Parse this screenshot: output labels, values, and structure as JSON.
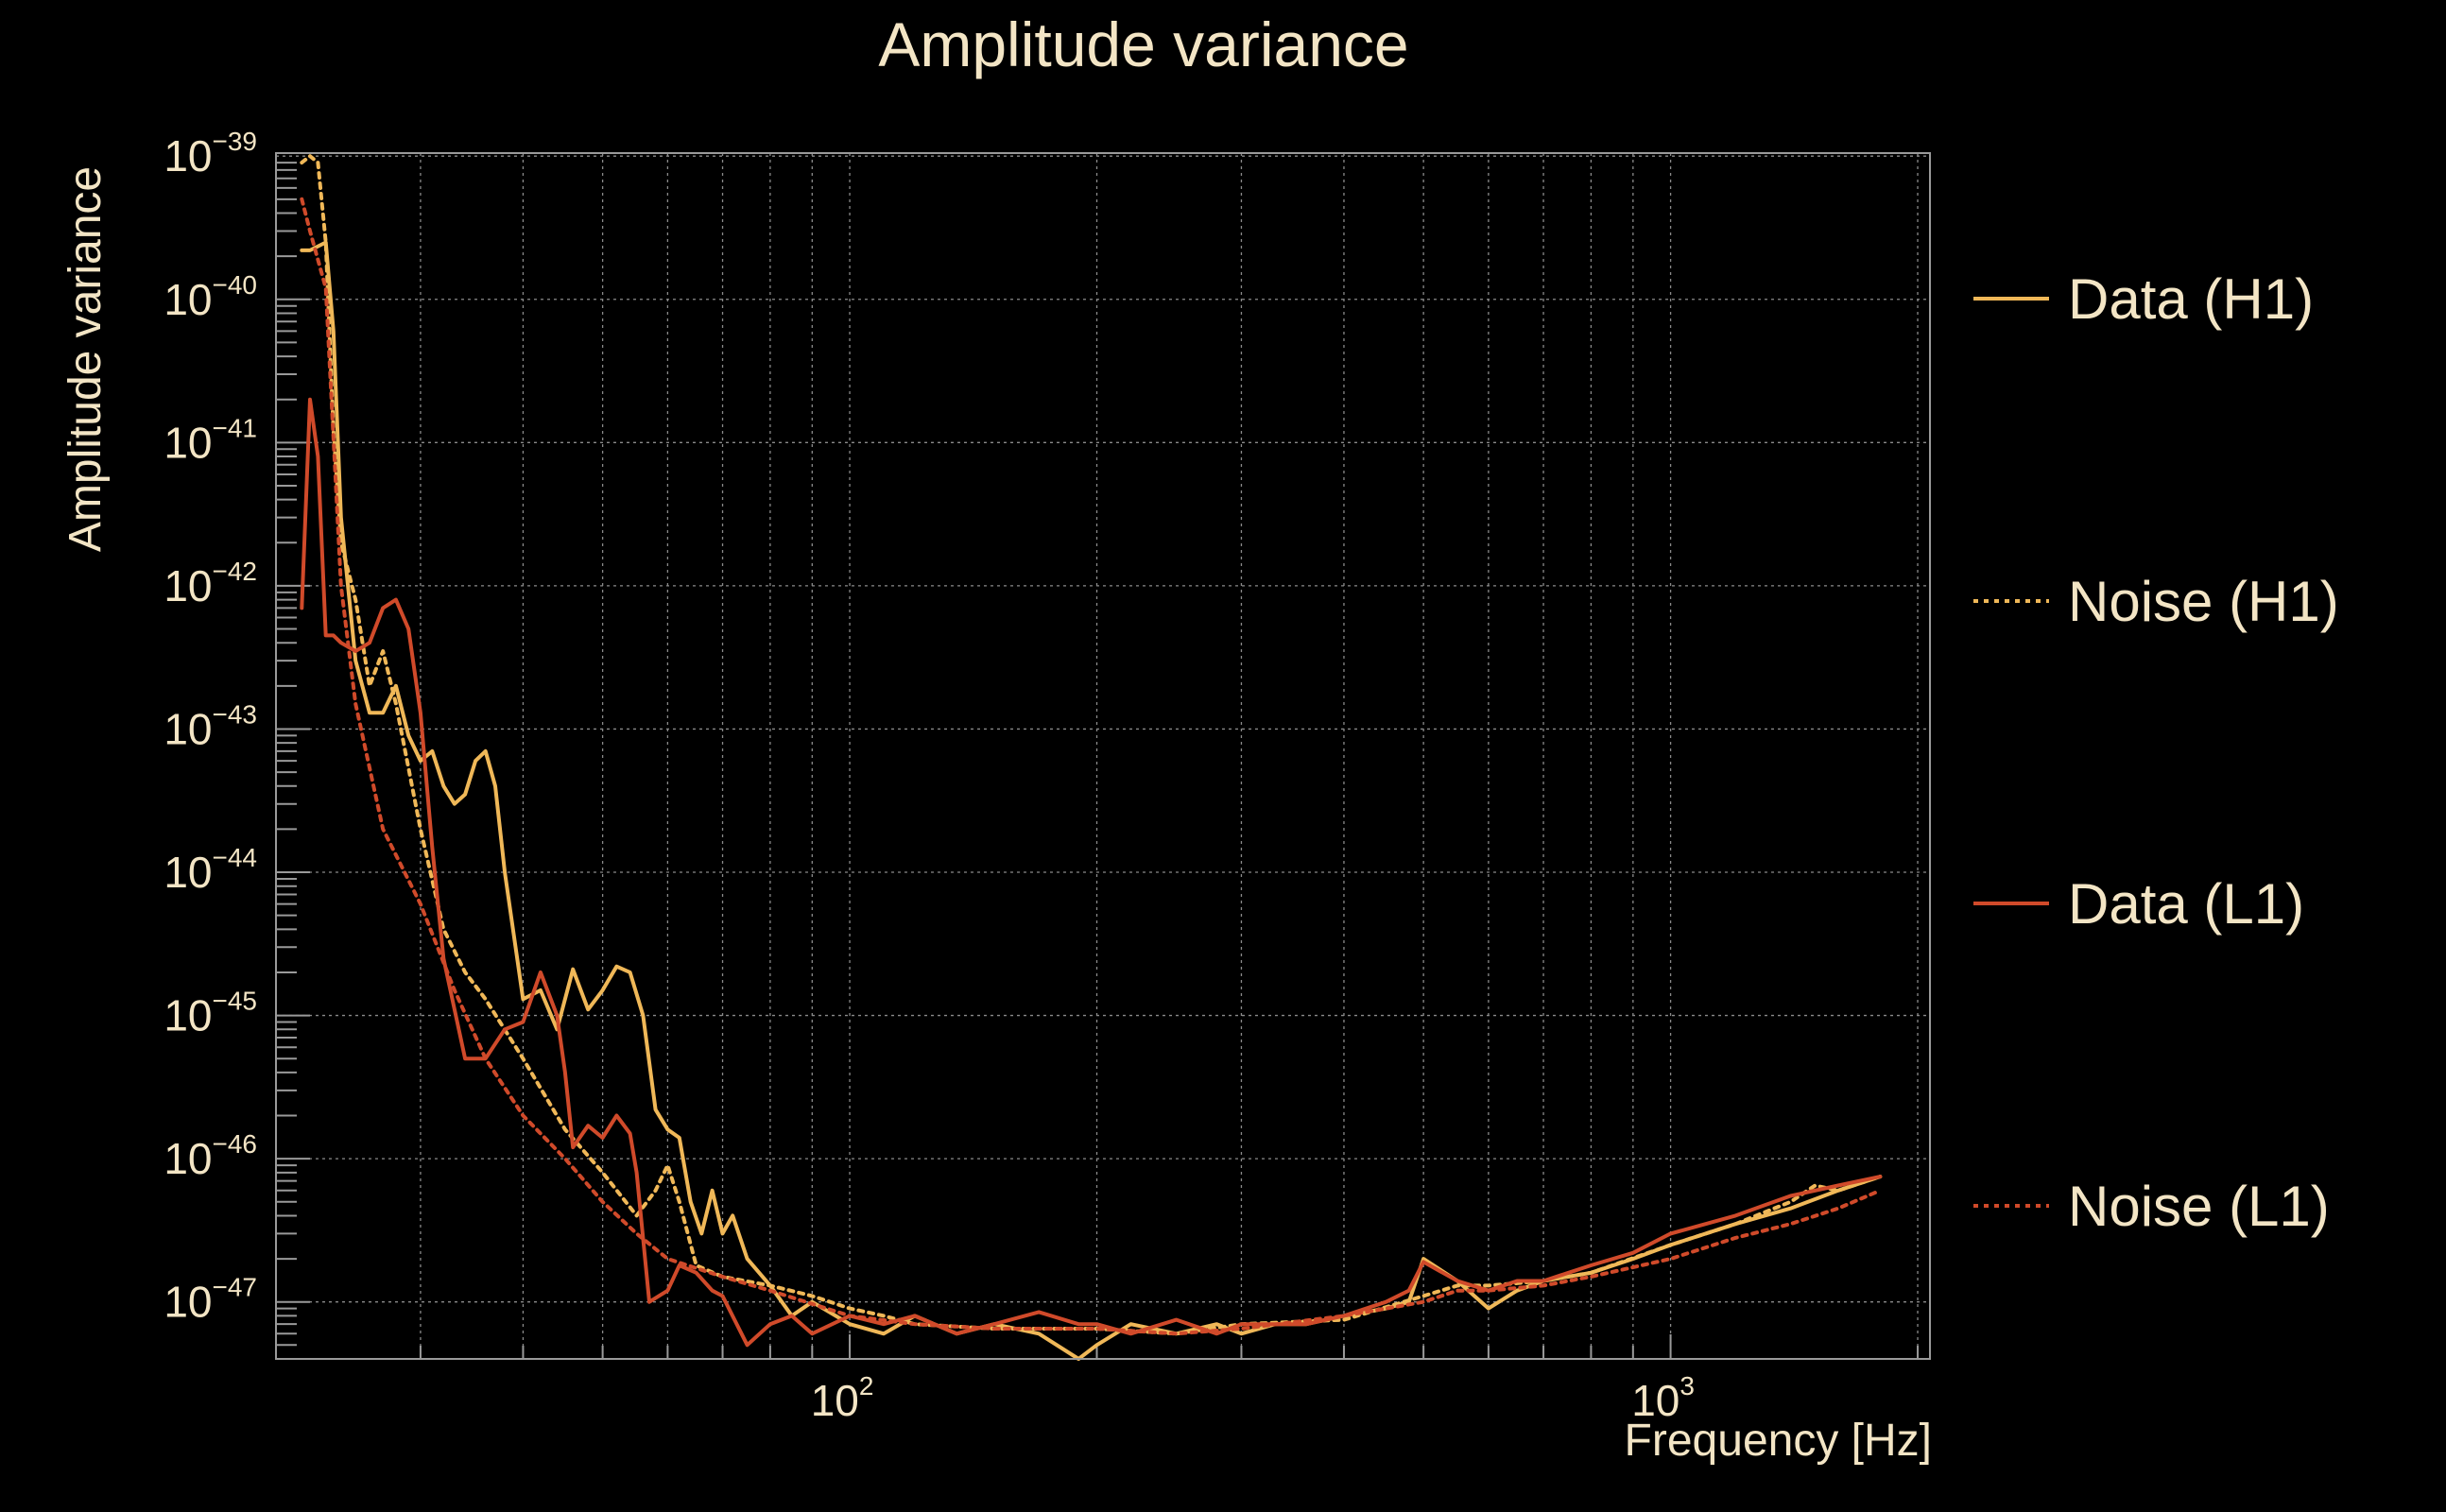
{
  "chart_data": {
    "type": "line",
    "title": "Amplitude variance",
    "xlabel": "Frequency [Hz]",
    "ylabel": "Amplitude variance",
    "x_scale": "log",
    "y_scale": "log",
    "xlim": [
      20,
      2070
    ],
    "ylim": [
      4e-48,
      1.05e-39
    ],
    "grid": true,
    "legend_position": "right",
    "x_ticks": [
      {
        "value": 100,
        "base": "10",
        "exp": "2"
      },
      {
        "value": 1000,
        "base": "10",
        "exp": "3"
      }
    ],
    "y_ticks": [
      {
        "value": 1e-39,
        "base": "10",
        "exp": "−39"
      },
      {
        "value": 1e-40,
        "base": "10",
        "exp": "−40"
      },
      {
        "value": 1e-41,
        "base": "10",
        "exp": "−41"
      },
      {
        "value": 1e-42,
        "base": "10",
        "exp": "−42"
      },
      {
        "value": 1e-43,
        "base": "10",
        "exp": "−43"
      },
      {
        "value": 1e-44,
        "base": "10",
        "exp": "−44"
      },
      {
        "value": 1e-45,
        "base": "10",
        "exp": "−45"
      },
      {
        "value": 1e-46,
        "base": "10",
        "exp": "−46"
      },
      {
        "value": 1e-47,
        "base": "10",
        "exp": "−47"
      }
    ],
    "series": [
      {
        "name": "Data (H1)",
        "color": "#f0b858",
        "dash": "solid",
        "x": [
          21.5,
          22,
          23,
          23.5,
          24,
          25,
          26,
          27,
          28,
          29,
          30,
          31,
          32,
          33,
          34,
          35,
          36,
          37,
          38,
          40,
          42,
          44,
          46,
          48,
          50,
          52,
          54,
          56,
          58,
          60,
          62,
          64,
          66,
          68,
          70,
          72,
          75,
          80,
          85,
          90,
          100,
          110,
          120,
          135,
          150,
          170,
          190,
          200,
          220,
          250,
          280,
          300,
          330,
          360,
          400,
          450,
          480,
          500,
          550,
          600,
          650,
          700,
          800,
          900,
          1000,
          1200,
          1400,
          1600,
          1800
        ],
        "y": [
          2.2e-40,
          2.2e-40,
          2.5e-40,
          6e-41,
          3e-42,
          3e-43,
          1.3e-43,
          1.3e-43,
          2e-43,
          9e-44,
          6e-44,
          7e-44,
          4e-44,
          3e-44,
          3.5e-44,
          6e-44,
          7e-44,
          4e-44,
          1e-44,
          1.3e-45,
          1.5e-45,
          8e-46,
          2.1e-45,
          1.1e-45,
          1.5e-45,
          2.2e-45,
          2e-45,
          1e-45,
          2.2e-46,
          1.6e-46,
          1.4e-46,
          5e-47,
          3e-47,
          6e-47,
          3e-47,
          4e-47,
          2e-47,
          1.3e-47,
          8e-48,
          1e-47,
          7e-48,
          6e-48,
          8e-48,
          6e-48,
          7e-48,
          6e-48,
          4e-48,
          5e-48,
          7e-48,
          6e-48,
          7e-48,
          6e-48,
          7e-48,
          7e-48,
          8e-48,
          9e-48,
          1e-47,
          2e-47,
          1.4e-47,
          9e-48,
          1.2e-47,
          1.4e-47,
          1.6e-47,
          2e-47,
          2.5e-47,
          3.5e-47,
          4.5e-47,
          6e-47,
          7.5e-47
        ]
      },
      {
        "name": "Noise (H1)",
        "color": "#f0b858",
        "dash": "dotted",
        "x": [
          21.5,
          22,
          22.5,
          23,
          23.5,
          24,
          25,
          26,
          27,
          28,
          30,
          32,
          34,
          36,
          40,
          45,
          50,
          55,
          58,
          60,
          62,
          65,
          70,
          80,
          90,
          100,
          110,
          120,
          150,
          200,
          250,
          300,
          400,
          500,
          550,
          600,
          700,
          800,
          1000,
          1200,
          1400,
          1500,
          1600,
          1800
        ],
        "y": [
          9e-40,
          1e-39,
          9e-40,
          2.5e-40,
          1.2e-41,
          2e-42,
          8e-43,
          2e-43,
          3.5e-43,
          1.5e-43,
          2e-44,
          4e-45,
          2e-45,
          1.3e-45,
          5e-46,
          1.6e-46,
          8e-47,
          4e-47,
          6e-47,
          9e-47,
          5e-47,
          1.8e-47,
          1.5e-47,
          1.3e-47,
          1.1e-47,
          9e-48,
          8e-48,
          7e-48,
          6.5e-48,
          6.5e-48,
          6e-48,
          7e-48,
          7.5e-48,
          1.1e-47,
          1.3e-47,
          1.3e-47,
          1.4e-47,
          1.6e-47,
          2.5e-47,
          3.5e-47,
          5e-47,
          6.5e-47,
          6e-47,
          7.5e-47
        ]
      },
      {
        "name": "Data (L1)",
        "color": "#d04a2a",
        "dash": "solid",
        "x": [
          21.5,
          22,
          22.5,
          23,
          23.5,
          24,
          25,
          26,
          27,
          28,
          29,
          30,
          31,
          32,
          34,
          36,
          38,
          40,
          42,
          44,
          45,
          46,
          48,
          50,
          52,
          54,
          55,
          57,
          60,
          62,
          65,
          68,
          70,
          75,
          80,
          85,
          90,
          100,
          110,
          120,
          135,
          150,
          170,
          190,
          200,
          220,
          250,
          280,
          300,
          330,
          360,
          400,
          450,
          480,
          500,
          550,
          600,
          650,
          700,
          800,
          900,
          1000,
          1200,
          1400,
          1600,
          1800
        ],
        "y": [
          7e-43,
          2e-41,
          8e-42,
          4.5e-43,
          4.5e-43,
          4e-43,
          3.5e-43,
          4e-43,
          7e-43,
          8e-43,
          5e-43,
          1.3e-43,
          1.5e-44,
          2.5e-45,
          5e-46,
          5e-46,
          8e-46,
          9e-46,
          2e-45,
          1e-45,
          4e-46,
          1.2e-46,
          1.7e-46,
          1.4e-46,
          2e-46,
          1.5e-46,
          8e-47,
          1e-47,
          1.2e-47,
          1.8e-47,
          1.6e-47,
          1.2e-47,
          1.1e-47,
          5e-48,
          7e-48,
          8e-48,
          6e-48,
          8e-48,
          7e-48,
          8e-48,
          6e-48,
          7e-48,
          8.5e-48,
          7e-48,
          7e-48,
          6e-48,
          7.5e-48,
          6e-48,
          7e-48,
          7e-48,
          7e-48,
          8e-48,
          1e-47,
          1.2e-47,
          1.9e-47,
          1.4e-47,
          1.2e-47,
          1.4e-47,
          1.4e-47,
          1.8e-47,
          2.2e-47,
          3e-47,
          4e-47,
          5.5e-47,
          6.5e-47,
          7.5e-47
        ]
      },
      {
        "name": "Noise (L1)",
        "color": "#d04a2a",
        "dash": "dotted",
        "x": [
          21.5,
          22,
          23,
          24,
          25,
          27,
          30,
          33,
          36,
          40,
          45,
          50,
          55,
          60,
          70,
          80,
          100,
          120,
          150,
          200,
          250,
          300,
          400,
          500,
          550,
          600,
          700,
          800,
          1000,
          1200,
          1400,
          1600,
          1800
        ],
        "y": [
          5e-40,
          3e-40,
          1.2e-40,
          1e-42,
          1.5e-43,
          2e-44,
          6e-45,
          1.5e-45,
          5e-46,
          2e-46,
          1e-46,
          5e-47,
          3e-47,
          2e-47,
          1.5e-47,
          1.2e-47,
          8e-48,
          7e-48,
          6.5e-48,
          6.5e-48,
          6e-48,
          6.5e-48,
          8e-48,
          1e-47,
          1.2e-47,
          1.2e-47,
          1.3e-47,
          1.5e-47,
          2e-47,
          2.8e-47,
          3.5e-47,
          4.5e-47,
          6e-47
        ]
      }
    ]
  }
}
